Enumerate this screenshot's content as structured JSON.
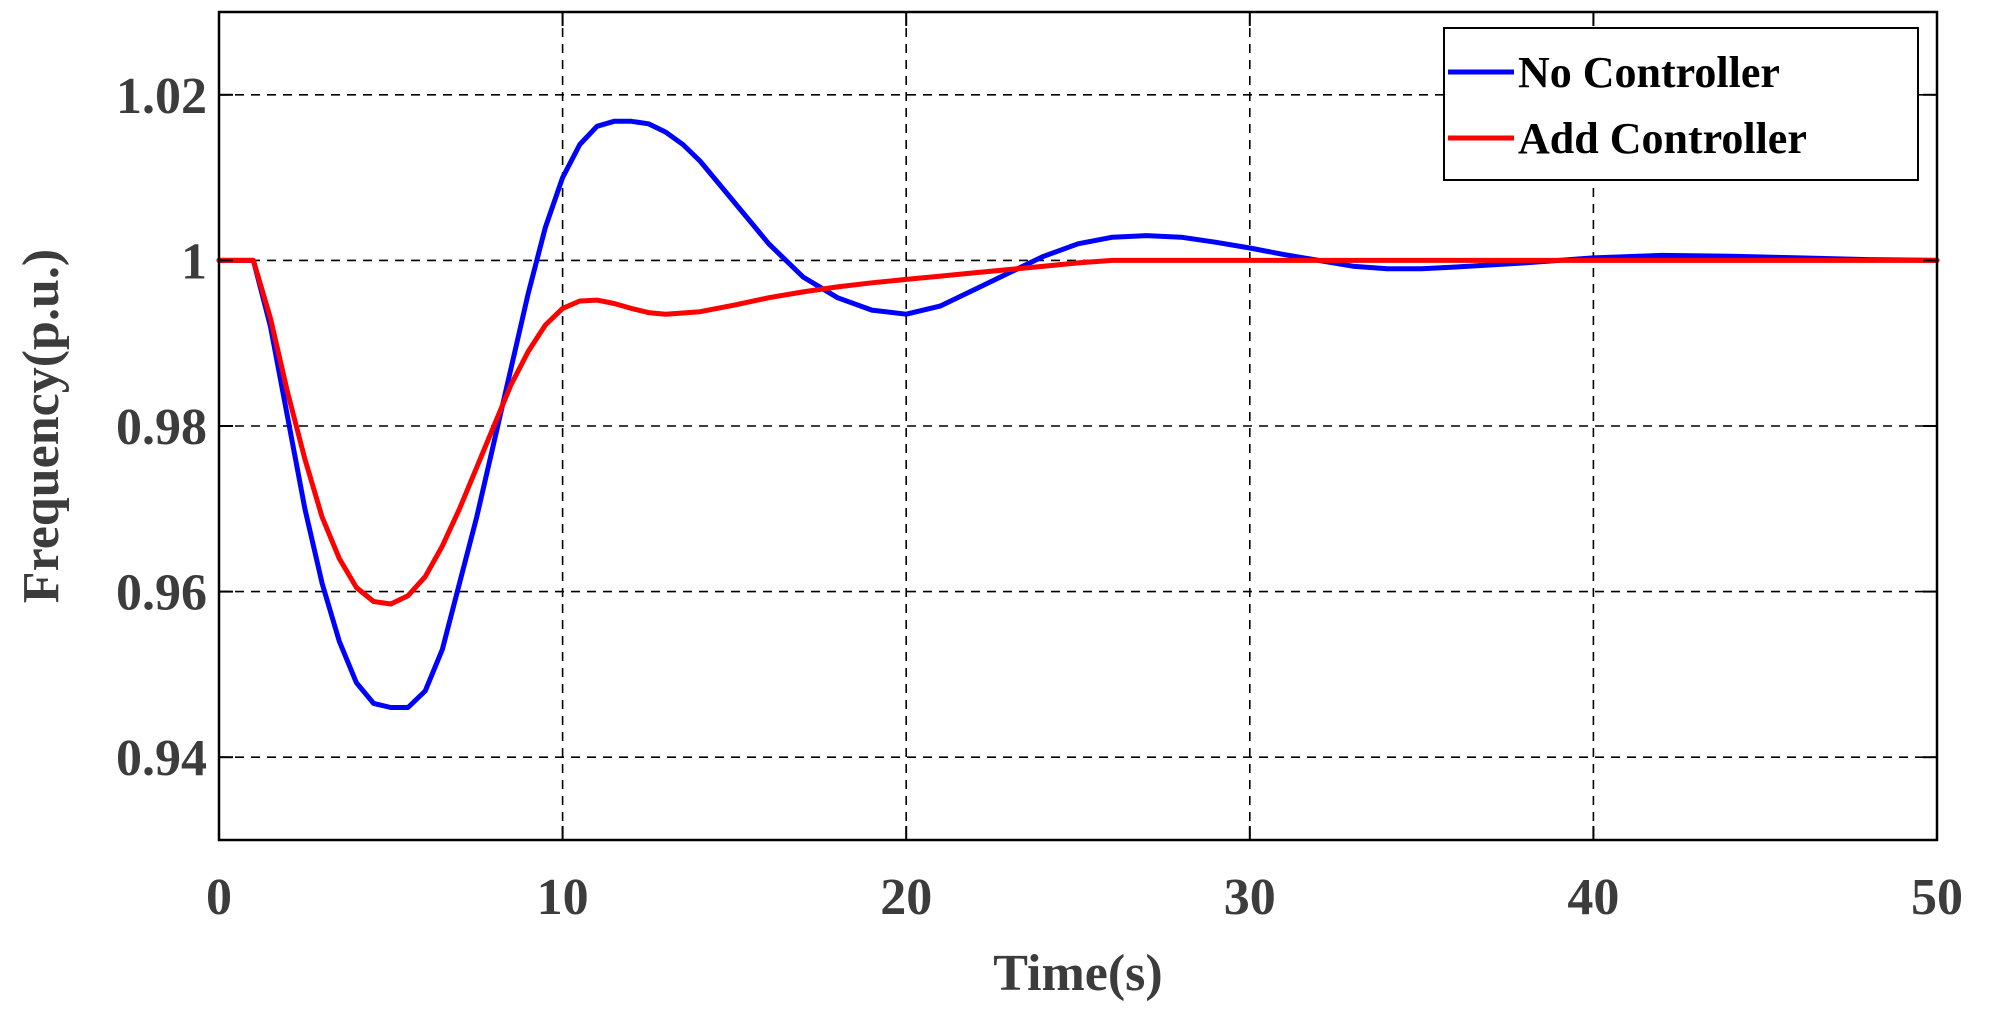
{
  "chart_data": {
    "type": "line",
    "title": "",
    "xlabel": "Time(s)",
    "ylabel": "Frequency(p.u.)",
    "xlim": [
      0,
      50
    ],
    "ylim": [
      0.93,
      1.03
    ],
    "xticks": [
      0,
      10,
      20,
      30,
      40,
      50
    ],
    "xtick_labels": [
      "0",
      "10",
      "20",
      "30",
      "40",
      "50"
    ],
    "yticks": [
      0.94,
      0.96,
      0.98,
      1.0,
      1.02
    ],
    "ytick_labels": [
      "0.94",
      "0.96",
      "0.98",
      "1",
      "1.02"
    ],
    "grid": true,
    "legend_position": "top-right",
    "series": [
      {
        "name": "No Controller",
        "color": "#0000ff",
        "x": [
          0,
          1,
          1.5,
          2,
          2.5,
          3,
          3.5,
          4,
          4.5,
          5,
          5.5,
          6,
          6.5,
          7,
          7.5,
          8,
          8.5,
          9,
          9.5,
          10,
          10.5,
          11,
          11.5,
          12,
          12.5,
          13,
          13.5,
          14,
          15,
          16,
          17,
          18,
          19,
          20,
          21,
          22,
          23,
          24,
          25,
          26,
          27,
          28,
          29,
          30,
          31,
          32,
          33,
          34,
          35,
          36,
          38,
          40,
          42,
          44,
          46,
          48,
          50
        ],
        "y": [
          1.0,
          1.0,
          0.992,
          0.981,
          0.97,
          0.961,
          0.954,
          0.949,
          0.9465,
          0.946,
          0.946,
          0.948,
          0.953,
          0.961,
          0.969,
          0.978,
          0.987,
          0.996,
          1.004,
          1.01,
          1.014,
          1.0162,
          1.0168,
          1.0168,
          1.0165,
          1.0155,
          1.014,
          1.012,
          1.007,
          1.002,
          0.998,
          0.9955,
          0.994,
          0.9935,
          0.9945,
          0.9965,
          0.9985,
          1.0005,
          1.002,
          1.0028,
          1.003,
          1.0028,
          1.0022,
          1.0015,
          1.0007,
          1.0,
          0.9993,
          0.999,
          0.999,
          0.9992,
          0.9997,
          1.0003,
          1.0006,
          1.0005,
          1.0003,
          1.0001,
          1.0
        ]
      },
      {
        "name": "Add Controller",
        "color": "#ff0000",
        "x": [
          0,
          1,
          1.5,
          2,
          2.5,
          3,
          3.5,
          4,
          4.5,
          5,
          5.5,
          6,
          6.5,
          7,
          7.5,
          8,
          8.5,
          9,
          9.5,
          10,
          10.5,
          11,
          11.5,
          12,
          12.5,
          13,
          14,
          15,
          16,
          17,
          18,
          19,
          20,
          21,
          22,
          23,
          24,
          25,
          26,
          27,
          28,
          30,
          35,
          40,
          45,
          50
        ],
        "y": [
          1.0,
          1.0,
          0.993,
          0.984,
          0.976,
          0.969,
          0.964,
          0.9605,
          0.9588,
          0.9585,
          0.9595,
          0.9618,
          0.9655,
          0.97,
          0.975,
          0.98,
          0.985,
          0.989,
          0.9922,
          0.9942,
          0.9951,
          0.9952,
          0.9948,
          0.9942,
          0.9937,
          0.9935,
          0.9938,
          0.9946,
          0.9955,
          0.9962,
          0.9968,
          0.9973,
          0.9977,
          0.9981,
          0.9985,
          0.9989,
          0.9993,
          0.9997,
          1.0,
          1.0,
          1.0,
          1.0,
          1.0,
          1.0,
          1.0,
          1.0
        ]
      }
    ]
  }
}
